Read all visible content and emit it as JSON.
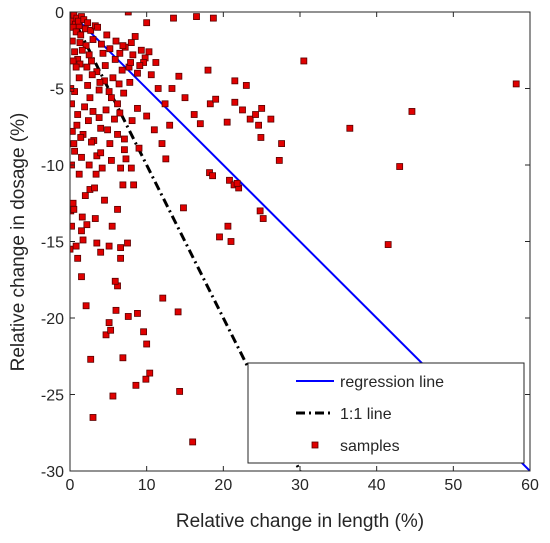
{
  "chart_data": {
    "type": "scatter",
    "xlabel": "Relative change in length (%)",
    "ylabel": "Relative change in dosage (%)",
    "xlim": [
      0,
      60
    ],
    "ylim": [
      -30,
      0
    ],
    "xticks": [
      "0",
      "10",
      "20",
      "30",
      "40",
      "50",
      "60"
    ],
    "yticks": [
      "0",
      "-5",
      "-10",
      "-15",
      "-20",
      "-25",
      "-30"
    ],
    "grid": false,
    "legend_position": "bottom-right",
    "series": [
      {
        "name": "regression line",
        "kind": "line",
        "style": "solid",
        "color": "#0000ff",
        "points": [
          [
            0,
            0
          ],
          [
            60,
            -30
          ]
        ]
      },
      {
        "name": "1:1 line",
        "kind": "line",
        "style": "dashdot",
        "color": "#000000",
        "points": [
          [
            0,
            0
          ],
          [
            30,
            -30
          ]
        ]
      },
      {
        "name": "samples",
        "kind": "scatter",
        "marker": "square",
        "color": "#e00000",
        "edge_color": "#5a0000",
        "points": [
          [
            0.1,
            -0.1
          ],
          [
            0.2,
            -0.3
          ],
          [
            0.3,
            -0.6
          ],
          [
            0.5,
            -0.2
          ],
          [
            0.7,
            -0.8
          ],
          [
            0.9,
            -0.4
          ],
          [
            1.2,
            -0.9
          ],
          [
            1.5,
            -0.3
          ],
          [
            0.4,
            -1.0
          ],
          [
            0.8,
            -1.3
          ],
          [
            1.1,
            -0.6
          ],
          [
            1.4,
            -1.5
          ],
          [
            1.8,
            -0.5
          ],
          [
            2.0,
            -1.1
          ],
          [
            2.3,
            -0.7
          ],
          [
            2.7,
            -1.2
          ],
          [
            3.0,
            -1.8
          ],
          [
            3.3,
            -0.9
          ],
          [
            2.1,
            -2.2
          ],
          [
            1.6,
            -2.5
          ],
          [
            3.6,
            -1.0
          ],
          [
            4.1,
            -2.1
          ],
          [
            2.5,
            -2.8
          ],
          [
            0.3,
            -1.9
          ],
          [
            0.6,
            -2.6
          ],
          [
            1.0,
            -3.1
          ],
          [
            1.3,
            -3.4
          ],
          [
            2.2,
            -3.6
          ],
          [
            2.8,
            -3.2
          ],
          [
            3.5,
            -3.9
          ],
          [
            4.3,
            -2.7
          ],
          [
            4.8,
            -1.5
          ],
          [
            5.2,
            -2.4
          ],
          [
            6.0,
            -1.9
          ],
          [
            6.5,
            -2.7
          ],
          [
            7.2,
            -2.3
          ],
          [
            8.0,
            -2.0
          ],
          [
            8.5,
            -1.6
          ],
          [
            9.3,
            -2.5
          ],
          [
            9.8,
            -3.0
          ],
          [
            10.3,
            -2.6
          ],
          [
            7.7,
            -3.6
          ],
          [
            6.8,
            -3.8
          ],
          [
            5.6,
            -4.3
          ],
          [
            4.5,
            -4.5
          ],
          [
            3.8,
            -5.1
          ],
          [
            2.6,
            -5.6
          ],
          [
            1.9,
            -6.2
          ],
          [
            1.2,
            -4.3
          ],
          [
            0.6,
            -5.2
          ],
          [
            0.2,
            -6.0
          ],
          [
            0.9,
            -7.4
          ],
          [
            1.7,
            -8.0
          ],
          [
            2.4,
            -7.1
          ],
          [
            3.1,
            -8.4
          ],
          [
            4.0,
            -7.6
          ],
          [
            4.7,
            -6.4
          ],
          [
            5.4,
            -5.6
          ],
          [
            6.2,
            -6.0
          ],
          [
            7.0,
            -5.3
          ],
          [
            7.8,
            -4.6
          ],
          [
            8.8,
            -4.0
          ],
          [
            9.6,
            -3.3
          ],
          [
            10.6,
            -4.1
          ],
          [
            11.5,
            -5.0
          ],
          [
            12.4,
            -6.0
          ],
          [
            13.3,
            -5.0
          ],
          [
            14.2,
            -4.2
          ],
          [
            11.2,
            -3.3
          ],
          [
            15.0,
            -5.6
          ],
          [
            16.2,
            -6.7
          ],
          [
            17.0,
            -7.3
          ],
          [
            18.3,
            -6.0
          ],
          [
            20.5,
            -7.2
          ],
          [
            21.5,
            -5.9
          ],
          [
            22.5,
            -6.4
          ],
          [
            23.5,
            -7.0
          ],
          [
            24.2,
            -6.7
          ],
          [
            25.0,
            -6.3
          ],
          [
            24.6,
            -7.4
          ],
          [
            24.9,
            -8.2
          ],
          [
            26.2,
            -7.0
          ],
          [
            27.6,
            -8.6
          ],
          [
            27.3,
            -9.7
          ],
          [
            30.5,
            -3.2
          ],
          [
            36.5,
            -7.6
          ],
          [
            44.6,
            -6.5
          ],
          [
            43.0,
            -10.1
          ],
          [
            41.5,
            -15.2
          ],
          [
            58.2,
            -4.7
          ],
          [
            10.0,
            -0.7
          ],
          [
            7.6,
            -0.0
          ],
          [
            16.5,
            -0.3
          ],
          [
            18.7,
            -0.4
          ],
          [
            13.5,
            -0.4
          ],
          [
            18.0,
            -3.8
          ],
          [
            21.5,
            -4.5
          ],
          [
            23.0,
            -4.8
          ],
          [
            19.0,
            -5.7
          ],
          [
            13.0,
            -7.4
          ],
          [
            18.2,
            -10.5
          ],
          [
            18.6,
            -10.7
          ],
          [
            20.8,
            -11.0
          ],
          [
            21.4,
            -11.3
          ],
          [
            22.0,
            -11.5
          ],
          [
            21.8,
            -11.2
          ],
          [
            20.6,
            -14.0
          ],
          [
            19.5,
            -14.7
          ],
          [
            21.0,
            -15.0
          ],
          [
            24.8,
            -13.0
          ],
          [
            25.2,
            -13.5
          ],
          [
            14.8,
            -12.8
          ],
          [
            16.0,
            -28.1
          ],
          [
            14.3,
            -24.8
          ],
          [
            10.4,
            -23.6
          ],
          [
            9.9,
            -24.0
          ],
          [
            8.6,
            -24.4
          ],
          [
            12.1,
            -18.7
          ],
          [
            14.1,
            -19.6
          ],
          [
            9.6,
            -20.9
          ],
          [
            10.0,
            -21.7
          ],
          [
            8.8,
            -19.7
          ],
          [
            7.6,
            -19.9
          ],
          [
            6.9,
            -22.6
          ],
          [
            5.6,
            -25.1
          ],
          [
            4.7,
            -21.1
          ],
          [
            5.1,
            -20.3
          ],
          [
            5.3,
            -20.8
          ],
          [
            6.0,
            -19.5
          ],
          [
            6.2,
            -17.9
          ],
          [
            5.9,
            -17.6
          ],
          [
            6.6,
            -16.1
          ],
          [
            7.5,
            -15.1
          ],
          [
            6.6,
            -15.4
          ],
          [
            5.1,
            -15.3
          ],
          [
            4.0,
            -15.7
          ],
          [
            3.5,
            -15.1
          ],
          [
            1.7,
            -14.9
          ],
          [
            0.8,
            -15.3
          ],
          [
            1.0,
            -16.1
          ],
          [
            1.5,
            -17.3
          ],
          [
            2.1,
            -19.2
          ],
          [
            2.7,
            -22.7
          ],
          [
            3.0,
            -26.5
          ],
          [
            0.0,
            -15.5
          ],
          [
            0.1,
            -13.0
          ],
          [
            0.4,
            -12.5
          ],
          [
            1.6,
            -13.4
          ],
          [
            2.0,
            -12.0
          ],
          [
            2.6,
            -11.6
          ],
          [
            3.4,
            -10.6
          ],
          [
            4.5,
            -12.3
          ],
          [
            3.3,
            -13.5
          ],
          [
            5.5,
            -14.0
          ],
          [
            6.2,
            -12.9
          ],
          [
            6.9,
            -11.3
          ],
          [
            8.0,
            -10.2
          ],
          [
            8.3,
            -11.3
          ],
          [
            6.6,
            -10.2
          ],
          [
            5.4,
            -9.7
          ],
          [
            4.2,
            -10.2
          ],
          [
            3.5,
            -9.4
          ],
          [
            2.8,
            -8.5
          ],
          [
            1.5,
            -9.5
          ],
          [
            0.6,
            -9.1
          ],
          [
            0.2,
            -10.0
          ],
          [
            1.2,
            -10.6
          ],
          [
            2.5,
            -10.0
          ],
          [
            7.3,
            -9.6
          ],
          [
            7.1,
            -8.3
          ],
          [
            6.2,
            -8.0
          ],
          [
            5.2,
            -8.6
          ],
          [
            4.0,
            -9.2
          ],
          [
            3.2,
            -11.5
          ],
          [
            2.2,
            -13.9
          ],
          [
            1.5,
            -14.3
          ],
          [
            0.5,
            -12.9
          ],
          [
            0.2,
            -14.0
          ],
          [
            0.1,
            -5.0
          ],
          [
            0.4,
            -3.2
          ],
          [
            0.8,
            -3.6
          ],
          [
            1.3,
            -2.0
          ],
          [
            2.9,
            -4.1
          ],
          [
            3.9,
            -4.6
          ],
          [
            4.6,
            -3.5
          ],
          [
            5.9,
            -3.1
          ],
          [
            6.9,
            -2.2
          ],
          [
            7.9,
            -3.3
          ],
          [
            8.2,
            -2.8
          ],
          [
            9.1,
            -3.5
          ],
          [
            6.4,
            -4.7
          ],
          [
            5.1,
            -5.2
          ],
          [
            3.0,
            -6.5
          ],
          [
            2.3,
            -4.8
          ],
          [
            1.0,
            -6.7
          ],
          [
            0.3,
            -7.8
          ],
          [
            0.5,
            -8.6
          ],
          [
            1.4,
            -8.2
          ],
          [
            3.8,
            -6.9
          ],
          [
            4.9,
            -7.7
          ],
          [
            5.8,
            -7.0
          ],
          [
            6.5,
            -6.6
          ],
          [
            8.8,
            -6.3
          ],
          [
            10.0,
            -6.8
          ],
          [
            11.0,
            -7.7
          ],
          [
            12.0,
            -8.6
          ],
          [
            12.5,
            -9.6
          ],
          [
            9.0,
            -8.9
          ],
          [
            8.1,
            -7.1
          ],
          [
            7.1,
            -9.0
          ]
        ]
      }
    ]
  }
}
